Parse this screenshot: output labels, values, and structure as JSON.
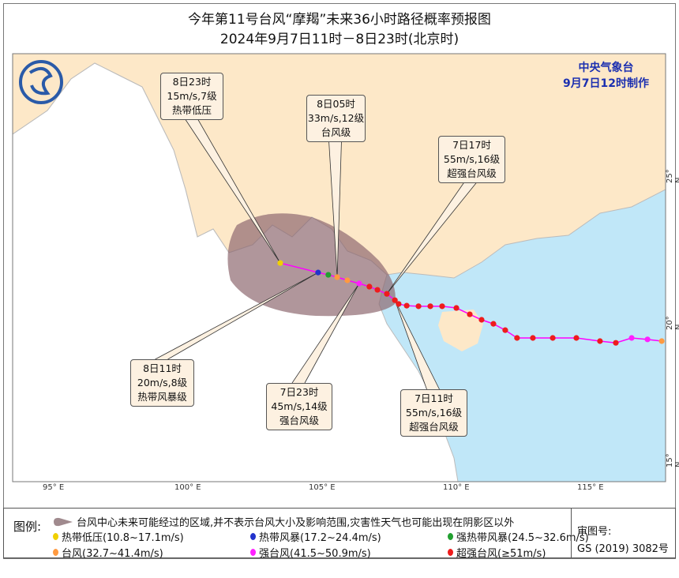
{
  "title": {
    "line1": "今年第11号台风“摩羯”未来36小时路径概率预报图",
    "line2": "2024年9月7日11时－8日23时(北京时)"
  },
  "issuer": {
    "name": "中央气象台",
    "time": "9月7日12时制作"
  },
  "colors": {
    "land_china": "#fde8c8",
    "land_other": "#ffffff",
    "sea": "#c0e7f8",
    "cone": "#8f6a70",
    "track": "#ff00ff",
    "yellow": "#f0d000",
    "blue": "#2233cc",
    "green": "#22a030",
    "orange": "#ff9a40",
    "magenta": "#ff20ff",
    "red": "#ee1c1c"
  },
  "axes": {
    "lon_labels": [
      "95° E",
      "100° E",
      "105° E",
      "110° E",
      "115° E"
    ],
    "lat_labels": [
      "25° N",
      "20° N",
      "15° N"
    ]
  },
  "labels": [
    {
      "time": "8日23时",
      "wind": "15m/s,7级",
      "grade": "热带低压"
    },
    {
      "time": "8日05时",
      "wind": "33m/s,12级",
      "grade": "台风级"
    },
    {
      "time": "7日17时",
      "wind": "55m/s,16级",
      "grade": "超强台风级"
    },
    {
      "time": "8日11时",
      "wind": "20m/s,8级",
      "grade": "热带风暴级"
    },
    {
      "time": "7日23时",
      "wind": "45m/s,14级",
      "grade": "强台风级"
    },
    {
      "time": "7日11时",
      "wind": "55m/s,16级",
      "grade": "超强台风级"
    }
  ],
  "track": [
    {
      "lon": 103.47,
      "lat": 21.97,
      "grade": "yellow"
    },
    {
      "lon": 104.88,
      "lat": 21.64,
      "grade": "blue"
    },
    {
      "lon": 105.26,
      "lat": 21.56,
      "grade": "green"
    },
    {
      "lon": 105.59,
      "lat": 21.48,
      "grade": "orange"
    },
    {
      "lon": 105.97,
      "lat": 21.37,
      "grade": "orange"
    },
    {
      "lon": 106.41,
      "lat": 21.26,
      "grade": "magenta"
    },
    {
      "lon": 106.79,
      "lat": 21.15,
      "grade": "red"
    },
    {
      "lon": 107.09,
      "lat": 21.04,
      "grade": "red"
    },
    {
      "lon": 107.44,
      "lat": 20.9,
      "grade": "red"
    },
    {
      "lon": 107.74,
      "lat": 20.68,
      "grade": "red"
    },
    {
      "lon": 107.88,
      "lat": 20.55,
      "grade": "red"
    },
    {
      "lon": 108.18,
      "lat": 20.49,
      "grade": "red"
    },
    {
      "lon": 108.62,
      "lat": 20.47,
      "grade": "red"
    },
    {
      "lon": 109.06,
      "lat": 20.47,
      "grade": "red"
    },
    {
      "lon": 109.5,
      "lat": 20.47,
      "grade": "red"
    },
    {
      "lon": 110.03,
      "lat": 20.41,
      "grade": "red"
    },
    {
      "lon": 110.53,
      "lat": 20.19,
      "grade": "red"
    },
    {
      "lon": 110.97,
      "lat": 20.0,
      "grade": "red"
    },
    {
      "lon": 111.41,
      "lat": 19.86,
      "grade": "red"
    },
    {
      "lon": 111.85,
      "lat": 19.64,
      "grade": "red"
    },
    {
      "lon": 112.29,
      "lat": 19.37,
      "grade": "red"
    },
    {
      "lon": 112.88,
      "lat": 19.37,
      "grade": "red"
    },
    {
      "lon": 113.62,
      "lat": 19.37,
      "grade": "red"
    },
    {
      "lon": 114.5,
      "lat": 19.37,
      "grade": "red"
    },
    {
      "lon": 115.38,
      "lat": 19.26,
      "grade": "red"
    },
    {
      "lon": 115.97,
      "lat": 19.2,
      "grade": "red"
    },
    {
      "lon": 116.56,
      "lat": 19.37,
      "grade": "magenta"
    },
    {
      "lon": 117.15,
      "lat": 19.32,
      "grade": "magenta"
    },
    {
      "lon": 117.68,
      "lat": 19.26,
      "grade": "orange"
    }
  ],
  "legend": {
    "title": "图例:",
    "cone": "台风中心未来可能经过的区域,并不表示台风大小及影响范围,灾害性天气也可能出现在阴影区以外",
    "items": [
      {
        "label": "热带低压(10.8~17.1m/s)",
        "color": "yellow"
      },
      {
        "label": "热带风暴(17.2~24.4m/s)",
        "color": "blue"
      },
      {
        "label": "强热带风暴(24.5~32.6m/s)",
        "color": "green"
      },
      {
        "label": "台风(32.7~41.4m/s)",
        "color": "orange"
      },
      {
        "label": "强台风(41.5~50.9m/s)",
        "color": "magenta"
      },
      {
        "label": "超强台风(≥51m/s)",
        "color": "red"
      }
    ],
    "review_label": "审图号:",
    "review_no": "GS (2019) 3082号"
  }
}
